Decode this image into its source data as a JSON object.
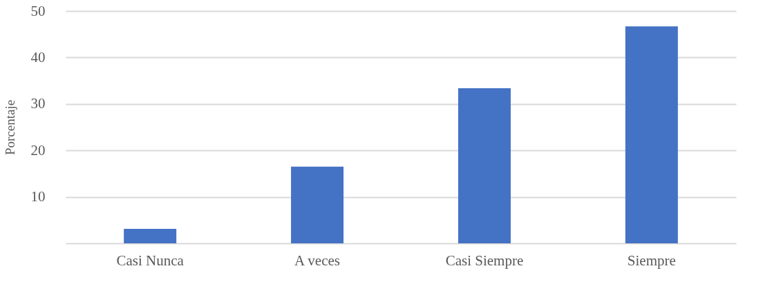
{
  "chart_data": {
    "type": "bar",
    "ylabel": "Porcentaje",
    "categories": [
      "Casi Nunca",
      "A veces",
      "Casi Siempre",
      "Siempre"
    ],
    "values": [
      3.1,
      16.5,
      33.4,
      46.7
    ],
    "color": "#4472c4",
    "ylim": [
      0,
      50
    ],
    "yticks": [
      {
        "value": 0,
        "label": null
      },
      10,
      20,
      30,
      40,
      50
    ],
    "grid": "y"
  }
}
